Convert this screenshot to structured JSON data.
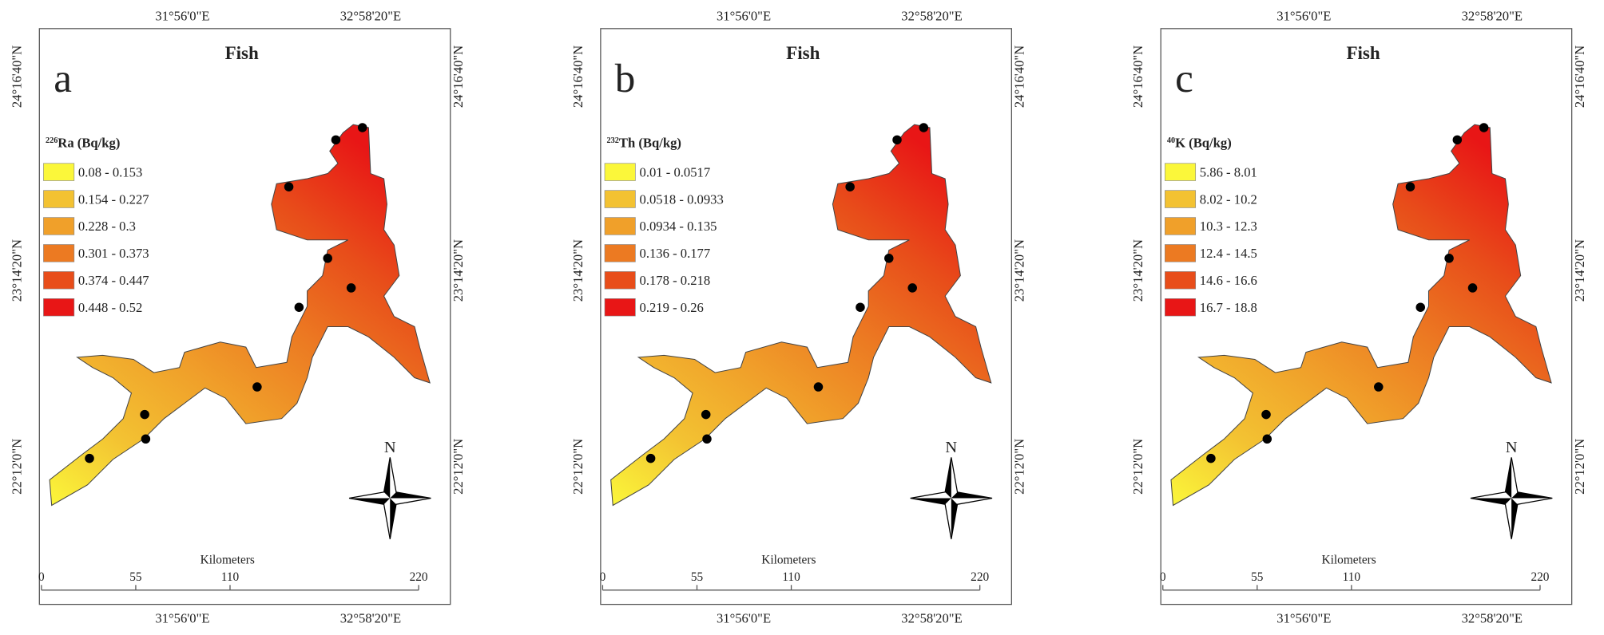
{
  "longitude_labels": [
    "31°56'0\"E",
    "32°58'20\"E"
  ],
  "latitude_labels": [
    "24°16'40\"N",
    "23°14'20\"N",
    "22°12'0\"N"
  ],
  "north": "N",
  "scale": {
    "title": "Kilometers",
    "ticks": [
      0,
      55,
      110,
      220
    ]
  },
  "panels": [
    {
      "letter": "a",
      "title": "Fish",
      "legend_title": {
        "mass": "226",
        "rest": "Ra (Bq/kg)"
      },
      "legend": [
        {
          "label": "0.08 - 0.153",
          "color": "#fbf73a"
        },
        {
          "label": "0.154 - 0.227",
          "color": "#f3c232"
        },
        {
          "label": "0.228 - 0.3",
          "color": "#f0a02a"
        },
        {
          "label": "0.301 - 0.373",
          "color": "#ec7a22"
        },
        {
          "label": "0.374 - 0.447",
          "color": "#e84d1a"
        },
        {
          "label": "0.448 - 0.52",
          "color": "#e81616"
        }
      ]
    },
    {
      "letter": "b",
      "title": "Fish",
      "legend_title": {
        "mass": "232",
        "rest": "Th (Bq/kg)"
      },
      "legend": [
        {
          "label": "0.01 - 0.0517",
          "color": "#fbf73a"
        },
        {
          "label": "0.0518 - 0.0933",
          "color": "#f3c232"
        },
        {
          "label": "0.0934 - 0.135",
          "color": "#f0a02a"
        },
        {
          "label": "0.136 - 0.177",
          "color": "#ec7a22"
        },
        {
          "label": "0.178 - 0.218",
          "color": "#e84d1a"
        },
        {
          "label": "0.219 - 0.26",
          "color": "#e81616"
        }
      ]
    },
    {
      "letter": "c",
      "title": "Fish",
      "legend_title": {
        "mass": "40",
        "rest": "K (Bq/kg)"
      },
      "legend": [
        {
          "label": "5.86 - 8.01",
          "color": "#fbf73a"
        },
        {
          "label": "8.02 - 10.2",
          "color": "#f3c232"
        },
        {
          "label": "10.3 - 12.3",
          "color": "#f0a02a"
        },
        {
          "label": "12.4 - 14.5",
          "color": "#ec7a22"
        },
        {
          "label": "14.6 - 16.6",
          "color": "#e84d1a"
        },
        {
          "label": "16.7 - 18.8",
          "color": "#e81616"
        }
      ]
    }
  ]
}
